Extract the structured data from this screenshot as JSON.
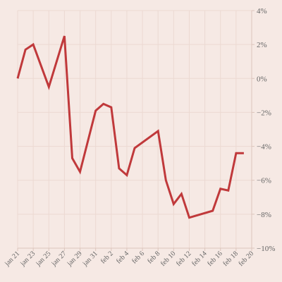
{
  "chart_data": {
    "type": "line",
    "title": "",
    "xlabel": "",
    "ylabel": "",
    "grid": true,
    "legend": "none",
    "y_axis_side": "right",
    "x": [
      "2021-01-21",
      "2021-01-22",
      "2021-01-23",
      "2021-01-25",
      "2021-01-27",
      "2021-01-28",
      "2021-01-29",
      "2021-01-31",
      "2021-02-01",
      "2021-02-02",
      "2021-02-03",
      "2021-02-04",
      "2021-02-05",
      "2021-02-08",
      "2021-02-09",
      "2021-02-10",
      "2021-02-11",
      "2021-02-12",
      "2021-02-15",
      "2021-02-16",
      "2021-02-17",
      "2021-02-18",
      "2021-02-19"
    ],
    "series": [
      {
        "values": [
          0.0,
          1.7,
          2.0,
          -0.5,
          2.5,
          -4.7,
          -5.5,
          -1.9,
          -1.5,
          -1.7,
          -5.3,
          -5.7,
          -4.1,
          -3.1,
          -6.0,
          -7.4,
          -6.8,
          -8.2,
          -7.8,
          -6.5,
          -6.6,
          -4.4,
          -4.4
        ]
      }
    ],
    "x_ticks": [
      "jan 21",
      "jan 23",
      "jan 25",
      "jan 27",
      "jan 29",
      "jan 31",
      "feb 2",
      "feb 4",
      "feb 6",
      "feb 8",
      "feb 10",
      "feb 12",
      "feb 14",
      "feb 16",
      "feb 18",
      "feb 20"
    ],
    "y_ticks": [
      4,
      2,
      0,
      -2,
      -4,
      -6,
      -8,
      -10
    ],
    "y_tick_labels": [
      "4%",
      "2%",
      "0%",
      "−2%",
      "−4%",
      "−6%",
      "−8%",
      "−10%"
    ],
    "ylim": [
      -10,
      4
    ],
    "colors": {
      "background": "#f6e9e4",
      "line": "#c0393b",
      "grid": "#ecd9d2",
      "axis": "#dcc5bc",
      "text": "#666666"
    }
  }
}
